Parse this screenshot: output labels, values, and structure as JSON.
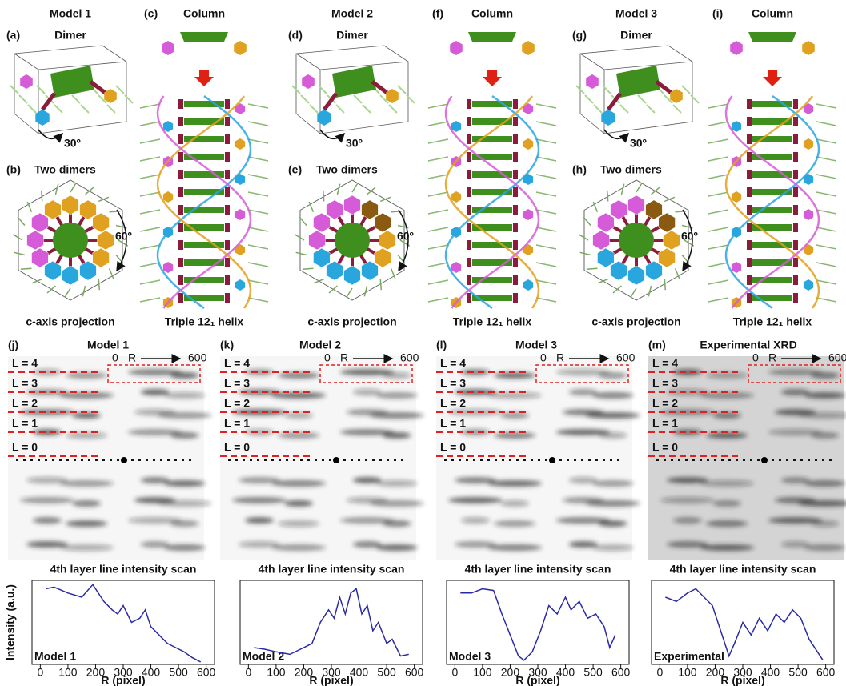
{
  "top": {
    "columns": [
      {
        "heading": "Model 1",
        "panels": [
          {
            "label": "(a)",
            "title": "Dimer",
            "annotation": "30º"
          },
          {
            "label": "(b)",
            "title": "Two dimers",
            "annotation": "60º"
          }
        ],
        "caption": "c-axis projection"
      },
      {
        "heading": "Column",
        "label": "(c)",
        "caption": "Triple 12₁ helix"
      },
      {
        "heading": "Model 2",
        "panels": [
          {
            "label": "(d)",
            "title": "Dimer",
            "annotation": "30º"
          },
          {
            "label": "(e)",
            "title": "Two dimers",
            "annotation": "60º"
          }
        ],
        "caption": "c-axis projection"
      },
      {
        "heading": "Column",
        "label": "(f)",
        "caption": "Triple 12₁ helix"
      },
      {
        "heading": "Model 3",
        "panels": [
          {
            "label": "(g)",
            "title": "Dimer",
            "annotation": "30º"
          },
          {
            "label": "(h)",
            "title": "Two dimers",
            "annotation": "60º"
          }
        ],
        "caption": "c-axis projection"
      },
      {
        "heading": "Column",
        "label": "(i)",
        "caption": "Triple 12₁ helix"
      }
    ]
  },
  "xrd": [
    {
      "label": "(j)",
      "title": "Model 1",
      "layers": [
        "L = 4",
        "L = 3",
        "L = 2",
        "L = 1",
        "L = 0"
      ],
      "scale": [
        "0",
        "R",
        "600"
      ]
    },
    {
      "label": "(k)",
      "title": "Model 2",
      "layers": [
        "L = 4",
        "L = 3",
        "L = 2",
        "L = 1",
        "L = 0"
      ],
      "scale": [
        "0",
        "R",
        "600"
      ]
    },
    {
      "label": "(l)",
      "title": "Model 3",
      "layers": [
        "L = 4",
        "L = 3",
        "L = 2",
        "L = 1",
        "L = 0"
      ],
      "scale": [
        "0",
        "R",
        "600"
      ]
    },
    {
      "label": "(m)",
      "title": "Experimental XRD",
      "layers": [
        "L = 4",
        "L = 3",
        "L = 2",
        "L = 1",
        "L = 0"
      ],
      "scale": [
        "0",
        "R",
        "600"
      ]
    }
  ],
  "chart_data": [
    {
      "type": "line",
      "title": "4th layer line intensity scan",
      "ylabel": "Intensity (a.u.)",
      "xlabel": "R (pixel)",
      "annotation": "Model 1",
      "color": "#2a2aa8",
      "x": [
        20,
        50,
        100,
        150,
        190,
        230,
        260,
        280,
        300,
        330,
        360,
        380,
        400,
        430,
        460,
        490,
        520,
        550,
        580
      ],
      "values": [
        0.9,
        0.92,
        0.85,
        0.8,
        0.95,
        0.75,
        0.65,
        0.6,
        0.7,
        0.5,
        0.55,
        0.65,
        0.45,
        0.35,
        0.25,
        0.2,
        0.15,
        0.08,
        0.03
      ],
      "xlim": [
        -30,
        630
      ],
      "ylim": [
        0,
        1
      ],
      "xticks": [
        0,
        100,
        200,
        300,
        400,
        500,
        600
      ]
    },
    {
      "type": "line",
      "title": "4th layer line intensity scan",
      "xlabel": "R (pixel)",
      "annotation": "Model 2",
      "color": "#2a2aa8",
      "x": [
        20,
        60,
        100,
        150,
        200,
        230,
        260,
        290,
        310,
        330,
        350,
        370,
        390,
        410,
        430,
        450,
        470,
        500,
        520,
        550,
        580
      ],
      "values": [
        0.2,
        0.18,
        0.15,
        0.12,
        0.2,
        0.25,
        0.5,
        0.65,
        0.55,
        0.8,
        0.6,
        0.85,
        0.9,
        0.6,
        0.7,
        0.4,
        0.5,
        0.25,
        0.3,
        0.1,
        0.12
      ],
      "xlim": [
        -30,
        630
      ],
      "ylim": [
        0,
        1
      ],
      "xticks": [
        0,
        100,
        200,
        300,
        400,
        500,
        600
      ]
    },
    {
      "type": "line",
      "title": "4th layer line intensity scan",
      "xlabel": "R (pixel)",
      "annotation": "Model 3",
      "color": "#2a2aa8",
      "x": [
        20,
        60,
        100,
        140,
        170,
        200,
        230,
        250,
        280,
        310,
        340,
        370,
        400,
        420,
        450,
        480,
        510,
        540,
        560,
        580
      ],
      "values": [
        0.85,
        0.85,
        0.9,
        0.88,
        0.6,
        0.35,
        0.1,
        0.05,
        0.15,
        0.4,
        0.7,
        0.6,
        0.8,
        0.65,
        0.75,
        0.55,
        0.6,
        0.45,
        0.2,
        0.35
      ],
      "xlim": [
        -30,
        630
      ],
      "ylim": [
        0,
        1
      ],
      "xticks": [
        0,
        100,
        200,
        300,
        400,
        500,
        600
      ]
    },
    {
      "type": "line",
      "title": "4th layer line intensity scan",
      "xlabel": "R (pixel)",
      "annotation": "Experimental",
      "color": "#2a2aa8",
      "x": [
        20,
        60,
        100,
        130,
        160,
        190,
        220,
        250,
        270,
        300,
        330,
        360,
        390,
        420,
        450,
        480,
        510,
        540,
        570,
        590
      ],
      "values": [
        0.8,
        0.75,
        0.85,
        0.9,
        0.8,
        0.7,
        0.4,
        0.1,
        0.25,
        0.5,
        0.35,
        0.55,
        0.4,
        0.6,
        0.5,
        0.65,
        0.55,
        0.3,
        0.15,
        0.05
      ],
      "xlim": [
        -30,
        630
      ],
      "ylim": [
        0,
        1
      ],
      "xticks": [
        0,
        100,
        200,
        300,
        400,
        500,
        600
      ]
    }
  ]
}
